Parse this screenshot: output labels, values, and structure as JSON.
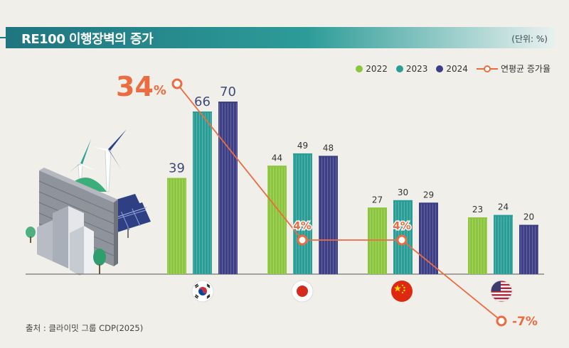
{
  "header": {
    "title": "RE100 이행장벽의 증가",
    "unit": "(단위: %)"
  },
  "legend": {
    "items": [
      "2022",
      "2023",
      "2024"
    ],
    "line_label": "연평균 증가율"
  },
  "source": "출처 : 클라이밋 그룹 CDP(2025)",
  "colors": {
    "y2022": "#8cc63f",
    "y2023": "#2a9d96",
    "y2024": "#3d3f86",
    "line": "#ec6c41"
  },
  "icons": [
    "korea-flag-icon",
    "japan-flag-icon",
    "china-flag-icon",
    "usa-flag-icon",
    "wind-turbine-icon",
    "solar-panel-icon",
    "building-icon",
    "wall-icon",
    "tree-icon"
  ],
  "chart_data": {
    "type": "bar",
    "categories": [
      "Korea",
      "Japan",
      "China",
      "USA"
    ],
    "series": [
      {
        "name": "2022",
        "values": [
          39,
          44,
          27,
          23
        ]
      },
      {
        "name": "2023",
        "values": [
          66,
          49,
          30,
          24
        ]
      },
      {
        "name": "2024",
        "values": [
          70,
          48,
          29,
          20
        ]
      }
    ],
    "line_series": {
      "name": "연평균 증가율",
      "values": [
        34,
        4,
        4,
        -7
      ],
      "labels": [
        "34%",
        "4%",
        "4%",
        "-7%"
      ]
    },
    "ylim": [
      0,
      75
    ],
    "grid": false,
    "legend_position": "top-right"
  }
}
